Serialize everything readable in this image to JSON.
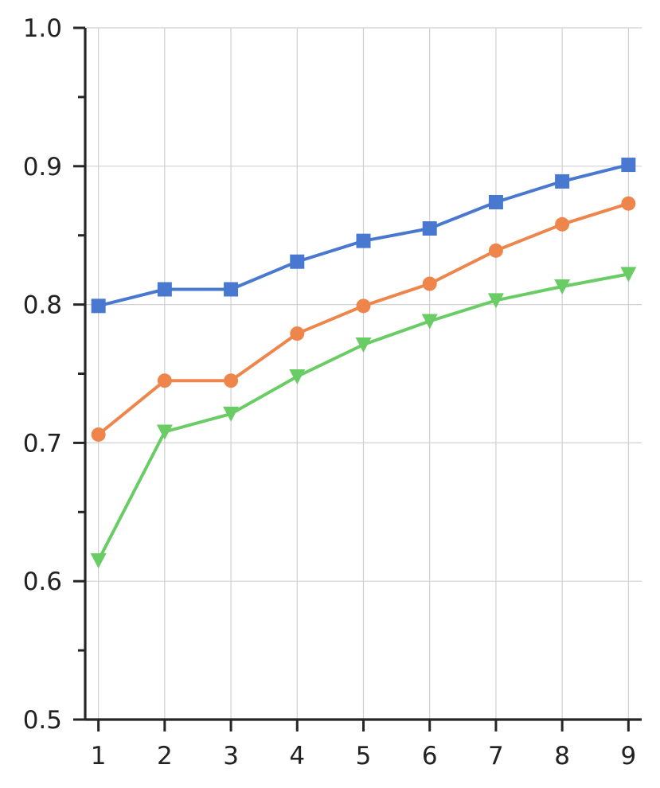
{
  "chart_data": {
    "type": "line",
    "title": "",
    "xlabel": "",
    "ylabel": "",
    "x": [
      1,
      2,
      3,
      4,
      5,
      6,
      7,
      8,
      9
    ],
    "xlim": [
      0.8,
      9.2
    ],
    "ylim": [
      0.5,
      1.0
    ],
    "x_ticks": [
      "1",
      "2",
      "3",
      "4",
      "5",
      "6",
      "7",
      "8",
      "9"
    ],
    "y_ticks": [
      "0.5",
      "0.6",
      "0.7",
      "0.8",
      "0.9",
      "1.0"
    ],
    "y_minor_ticks": [
      0.55,
      0.65,
      0.75,
      0.85,
      0.95
    ],
    "grid": true,
    "legend": "none",
    "series": [
      {
        "color": "#4878cf",
        "marker": "square",
        "values": [
          0.799,
          0.811,
          0.811,
          0.831,
          0.846,
          0.855,
          0.874,
          0.889,
          0.901
        ]
      },
      {
        "color": "#ee854a",
        "marker": "circle",
        "values": [
          0.706,
          0.745,
          0.745,
          0.779,
          0.799,
          0.815,
          0.839,
          0.858,
          0.873
        ]
      },
      {
        "color": "#6acc64",
        "marker": "triangle-down",
        "values": [
          0.615,
          0.708,
          0.721,
          0.748,
          0.771,
          0.788,
          0.803,
          0.813,
          0.822
        ]
      }
    ]
  }
}
